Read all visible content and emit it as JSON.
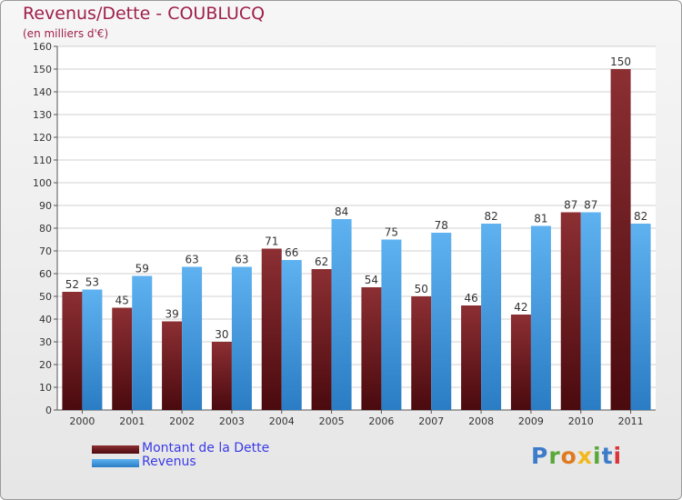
{
  "title": "Revenus/Dette - COUBLUCQ",
  "subtitle": "(en milliers d'€)",
  "chart_data": {
    "type": "bar",
    "categories": [
      "2000",
      "2001",
      "2002",
      "2003",
      "2004",
      "2005",
      "2006",
      "2007",
      "2008",
      "2009",
      "2010",
      "2011"
    ],
    "series": [
      {
        "name": "Montant de la Dette",
        "color": "#7a1a1f",
        "values": [
          52,
          45,
          39,
          30,
          71,
          62,
          54,
          50,
          46,
          42,
          87,
          150
        ]
      },
      {
        "name": "Revenus",
        "color": "#4aa3e8",
        "values": [
          53,
          59,
          63,
          63,
          66,
          84,
          75,
          78,
          82,
          81,
          87,
          82
        ]
      }
    ],
    "ylim": [
      0,
      160
    ],
    "yticks": [
      0,
      10,
      20,
      30,
      40,
      50,
      60,
      70,
      80,
      90,
      100,
      110,
      120,
      130,
      140,
      150,
      160
    ],
    "grid": true,
    "legend_position": "bottom-left"
  },
  "logo": {
    "letters": [
      {
        "char": "P",
        "color": "#3d7cc9"
      },
      {
        "char": "r",
        "color": "#5aa83a"
      },
      {
        "char": "o",
        "color": "#e07a20"
      },
      {
        "char": "x",
        "color": "#f2b81c"
      },
      {
        "char": "i",
        "color": "#5aa83a"
      },
      {
        "char": "t",
        "color": "#3d7cc9"
      },
      {
        "char": "i",
        "color": "#d9353a"
      }
    ]
  }
}
